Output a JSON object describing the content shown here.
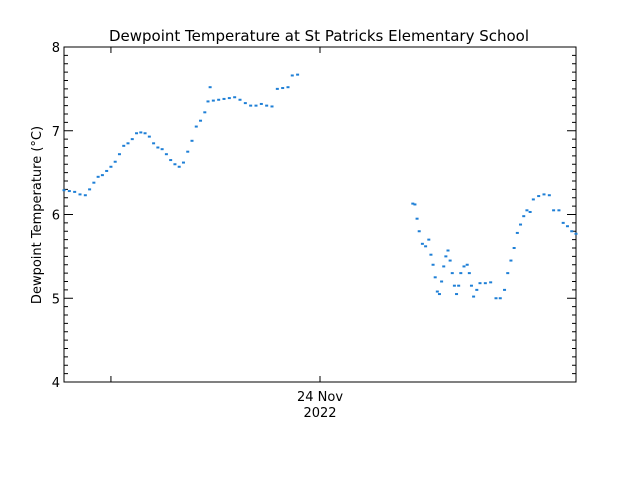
{
  "chart_data": {
    "type": "scatter",
    "title": "Dewpoint Temperature at St Patricks Elementary School",
    "ylabel": "Dewpoint Temperature (°C)",
    "xlabel": "",
    "x_unit": "hours since start of plotted window",
    "xlim": [
      0,
      48
    ],
    "ylim": [
      4,
      8
    ],
    "yticks": [
      4,
      5,
      6,
      7,
      8
    ],
    "x_tick_labels": [
      {
        "x": 4.4,
        "label": ""
      },
      {
        "x": 24,
        "label": "24 Nov",
        "sublabel": "2022"
      }
    ],
    "grid": false,
    "series": [
      {
        "color": "#1e7fd6",
        "points": [
          [
            0.0,
            6.29
          ],
          [
            0.5,
            6.28
          ],
          [
            1.0,
            6.27
          ],
          [
            1.5,
            6.24
          ],
          [
            2.0,
            6.23
          ],
          [
            2.4,
            6.3
          ],
          [
            2.8,
            6.38
          ],
          [
            3.2,
            6.45
          ],
          [
            3.6,
            6.47
          ],
          [
            4.0,
            6.52
          ],
          [
            4.4,
            6.57
          ],
          [
            4.8,
            6.63
          ],
          [
            5.2,
            6.72
          ],
          [
            5.6,
            6.82
          ],
          [
            6.0,
            6.85
          ],
          [
            6.4,
            6.9
          ],
          [
            6.8,
            6.97
          ],
          [
            7.2,
            6.98
          ],
          [
            7.6,
            6.97
          ],
          [
            8.0,
            6.93
          ],
          [
            8.4,
            6.85
          ],
          [
            8.8,
            6.8
          ],
          [
            9.2,
            6.78
          ],
          [
            9.6,
            6.72
          ],
          [
            10.0,
            6.65
          ],
          [
            10.4,
            6.6
          ],
          [
            10.8,
            6.57
          ],
          [
            11.2,
            6.62
          ],
          [
            11.6,
            6.75
          ],
          [
            12.0,
            6.88
          ],
          [
            12.4,
            7.05
          ],
          [
            12.8,
            7.12
          ],
          [
            13.2,
            7.22
          ],
          [
            13.5,
            7.35
          ],
          [
            13.7,
            7.52
          ],
          [
            14.0,
            7.36
          ],
          [
            14.5,
            7.37
          ],
          [
            15.0,
            7.38
          ],
          [
            15.5,
            7.39
          ],
          [
            16.0,
            7.4
          ],
          [
            16.5,
            7.37
          ],
          [
            17.0,
            7.33
          ],
          [
            17.5,
            7.3
          ],
          [
            18.0,
            7.3
          ],
          [
            18.5,
            7.32
          ],
          [
            19.0,
            7.3
          ],
          [
            19.5,
            7.29
          ],
          [
            20.0,
            7.5
          ],
          [
            20.5,
            7.51
          ],
          [
            21.0,
            7.52
          ],
          [
            21.4,
            7.66
          ],
          [
            21.9,
            7.67
          ],
          [
            32.7,
            6.13
          ],
          [
            32.9,
            6.12
          ],
          [
            33.1,
            5.95
          ],
          [
            33.3,
            5.8
          ],
          [
            33.6,
            5.65
          ],
          [
            33.9,
            5.62
          ],
          [
            34.2,
            5.7
          ],
          [
            34.4,
            5.52
          ],
          [
            34.6,
            5.4
          ],
          [
            34.8,
            5.25
          ],
          [
            35.0,
            5.08
          ],
          [
            35.2,
            5.05
          ],
          [
            35.4,
            5.2
          ],
          [
            35.6,
            5.38
          ],
          [
            35.8,
            5.5
          ],
          [
            36.0,
            5.57
          ],
          [
            36.2,
            5.45
          ],
          [
            36.4,
            5.3
          ],
          [
            36.6,
            5.15
          ],
          [
            36.8,
            5.05
          ],
          [
            37.0,
            5.15
          ],
          [
            37.2,
            5.3
          ],
          [
            37.5,
            5.38
          ],
          [
            37.8,
            5.4
          ],
          [
            38.0,
            5.3
          ],
          [
            38.2,
            5.15
          ],
          [
            38.4,
            5.02
          ],
          [
            38.7,
            5.1
          ],
          [
            39.0,
            5.18
          ],
          [
            39.5,
            5.18
          ],
          [
            40.0,
            5.19
          ],
          [
            40.5,
            5.0
          ],
          [
            40.9,
            5.0
          ],
          [
            41.3,
            5.1
          ],
          [
            41.6,
            5.3
          ],
          [
            41.9,
            5.45
          ],
          [
            42.2,
            5.6
          ],
          [
            42.5,
            5.78
          ],
          [
            42.8,
            5.88
          ],
          [
            43.1,
            5.98
          ],
          [
            43.4,
            6.05
          ],
          [
            43.7,
            6.03
          ],
          [
            44.0,
            6.18
          ],
          [
            44.5,
            6.22
          ],
          [
            45.0,
            6.24
          ],
          [
            45.5,
            6.23
          ],
          [
            45.9,
            6.05
          ],
          [
            46.4,
            6.05
          ],
          [
            46.8,
            5.9
          ],
          [
            47.2,
            5.86
          ],
          [
            47.6,
            5.8
          ],
          [
            48.0,
            5.77
          ]
        ]
      }
    ]
  }
}
